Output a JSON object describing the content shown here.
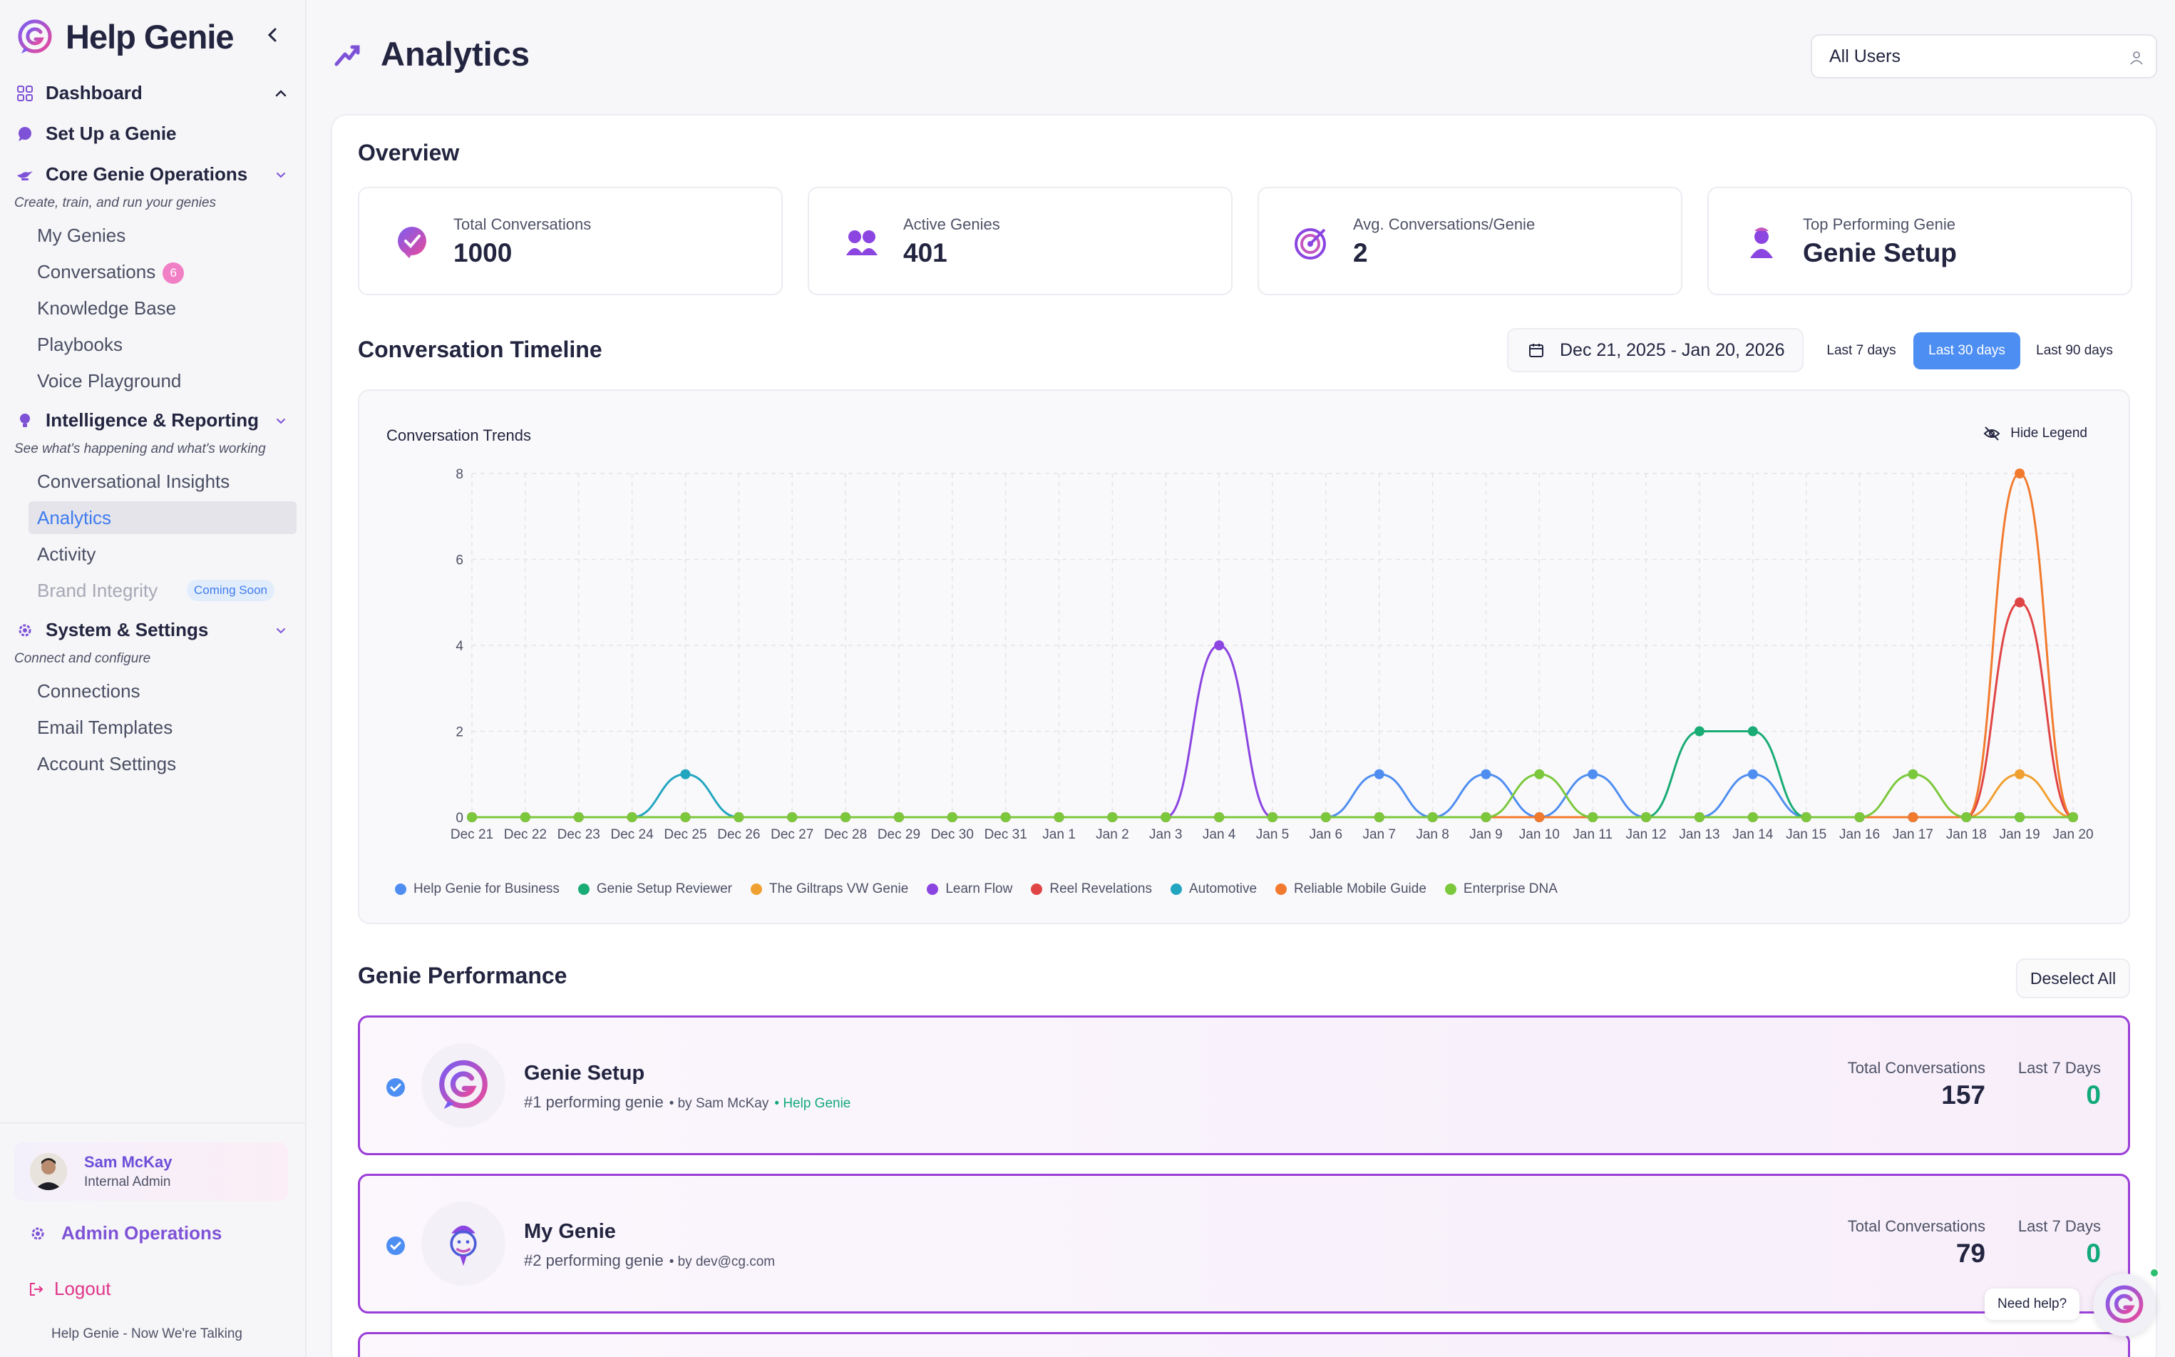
{
  "app": {
    "name": "Help Genie",
    "tagline": "Help Genie - Now We're Talking"
  },
  "sidebar": {
    "sections": [
      {
        "label": "Dashboard"
      },
      {
        "label": "Set Up a Genie"
      },
      {
        "label": "Core Genie Operations",
        "desc": "Create, train, and run your genies"
      },
      {
        "label": "Intelligence & Reporting",
        "desc": "See what's happening and what's working"
      },
      {
        "label": "System & Settings",
        "desc": "Connect and configure"
      }
    ],
    "core_items": [
      "My Genies",
      "Conversations",
      "Knowledge Base",
      "Playbooks",
      "Voice Playground"
    ],
    "conversations_badge": "6",
    "intel_items": [
      "Conversational Insights",
      "Analytics",
      "Activity",
      "Brand Integrity"
    ],
    "coming_soon": "Coming Soon",
    "system_items": [
      "Connections",
      "Email Templates",
      "Account Settings"
    ],
    "user": {
      "name": "Sam McKay",
      "role": "Internal Admin"
    },
    "admin_ops": "Admin Operations",
    "logout": "Logout"
  },
  "header": {
    "title": "Analytics",
    "user_filter": "All Users"
  },
  "overview": {
    "title": "Overview",
    "stats": [
      {
        "label": "Total Conversations",
        "value": "1000"
      },
      {
        "label": "Active Genies",
        "value": "401"
      },
      {
        "label": "Avg. Conversations/Genie",
        "value": "2"
      },
      {
        "label": "Top Performing Genie",
        "value": "Genie Setup"
      }
    ]
  },
  "timeline": {
    "title": "Conversation Timeline",
    "date_range": "Dec 21, 2025 - Jan 20, 2026",
    "ranges": [
      "Last 7 days",
      "Last 30 days",
      "Last 90 days"
    ],
    "active_range": "Last 30 days",
    "hide_legend": "Hide Legend"
  },
  "chart_data": {
    "type": "line",
    "title": "Conversation Trends",
    "xlabel": "",
    "ylabel": "",
    "ylim": [
      0,
      8
    ],
    "yticks": [
      "0",
      "2",
      "4",
      "6",
      "8"
    ],
    "grid": true,
    "legend_position": "bottom",
    "x": [
      "Dec 21",
      "Dec 22",
      "Dec 23",
      "Dec 24",
      "Dec 25",
      "Dec 26",
      "Dec 27",
      "Dec 28",
      "Dec 29",
      "Dec 30",
      "Dec 31",
      "Jan 1",
      "Jan 2",
      "Jan 3",
      "Jan 4",
      "Jan 5",
      "Jan 6",
      "Jan 7",
      "Jan 8",
      "Jan 9",
      "Jan 10",
      "Jan 11",
      "Jan 12",
      "Jan 13",
      "Jan 14",
      "Jan 15",
      "Jan 16",
      "Jan 17",
      "Jan 18",
      "Jan 19",
      "Jan 20"
    ],
    "series": [
      {
        "name": "Help Genie for Business",
        "color": "#4f8ef0",
        "values": [
          0,
          0,
          0,
          0,
          0,
          0,
          0,
          0,
          0,
          0,
          0,
          0,
          0,
          0,
          0,
          0,
          0,
          1,
          0,
          1,
          0,
          1,
          0,
          0,
          1,
          0,
          0,
          0,
          0,
          0,
          0
        ]
      },
      {
        "name": "Genie Setup Reviewer",
        "color": "#1aac75",
        "values": [
          0,
          0,
          0,
          0,
          0,
          0,
          0,
          0,
          0,
          0,
          0,
          0,
          0,
          0,
          0,
          0,
          0,
          0,
          0,
          0,
          0,
          0,
          0,
          2,
          2,
          0,
          0,
          0,
          0,
          0,
          0
        ]
      },
      {
        "name": "The Giltraps VW Genie",
        "color": "#f0a030",
        "values": [
          0,
          0,
          0,
          0,
          0,
          0,
          0,
          0,
          0,
          0,
          0,
          0,
          0,
          0,
          0,
          0,
          0,
          0,
          0,
          0,
          0,
          0,
          0,
          0,
          0,
          0,
          0,
          0,
          0,
          1,
          0
        ]
      },
      {
        "name": "Learn Flow",
        "color": "#8b45e0",
        "values": [
          0,
          0,
          0,
          0,
          0,
          0,
          0,
          0,
          0,
          0,
          0,
          0,
          0,
          0,
          4,
          0,
          0,
          0,
          0,
          0,
          0,
          0,
          0,
          0,
          0,
          0,
          0,
          0,
          0,
          0,
          0
        ]
      },
      {
        "name": "Reel Revelations",
        "color": "#e04545",
        "values": [
          0,
          0,
          0,
          0,
          0,
          0,
          0,
          0,
          0,
          0,
          0,
          0,
          0,
          0,
          0,
          0,
          0,
          0,
          0,
          0,
          0,
          0,
          0,
          0,
          0,
          0,
          0,
          0,
          0,
          5,
          0
        ]
      },
      {
        "name": "Automotive",
        "color": "#22a6c0",
        "values": [
          0,
          0,
          0,
          0,
          1,
          0,
          0,
          0,
          0,
          0,
          0,
          0,
          0,
          0,
          0,
          0,
          0,
          0,
          0,
          0,
          0,
          0,
          0,
          0,
          0,
          0,
          0,
          0,
          0,
          0,
          0
        ]
      },
      {
        "name": "Reliable Mobile Guide",
        "color": "#f27a2e",
        "values": [
          0,
          0,
          0,
          0,
          0,
          0,
          0,
          0,
          0,
          0,
          0,
          0,
          0,
          0,
          0,
          0,
          0,
          0,
          0,
          0,
          0,
          0,
          0,
          0,
          0,
          0,
          0,
          0,
          0,
          8,
          0
        ]
      },
      {
        "name": "Enterprise DNA",
        "color": "#7cc83c",
        "values": [
          0,
          0,
          0,
          0,
          0,
          0,
          0,
          0,
          0,
          0,
          0,
          0,
          0,
          0,
          0,
          0,
          0,
          0,
          0,
          0,
          1,
          0,
          0,
          0,
          0,
          0,
          0,
          1,
          0,
          0,
          0
        ]
      }
    ]
  },
  "performance": {
    "title": "Genie Performance",
    "deselect": "Deselect All",
    "total_label": "Total Conversations",
    "last7_label": "Last 7 Days",
    "genies": [
      {
        "name": "Genie Setup",
        "rank": "#1 performing genie",
        "by": "• by Sam McKay",
        "tag": "• Help Genie",
        "total": "157",
        "last7": "0"
      },
      {
        "name": "My Genie",
        "rank": "#2 performing genie",
        "by": "• by dev@cg.com",
        "tag": "",
        "total": "79",
        "last7": "0"
      }
    ]
  },
  "help": {
    "label": "Need help?"
  }
}
